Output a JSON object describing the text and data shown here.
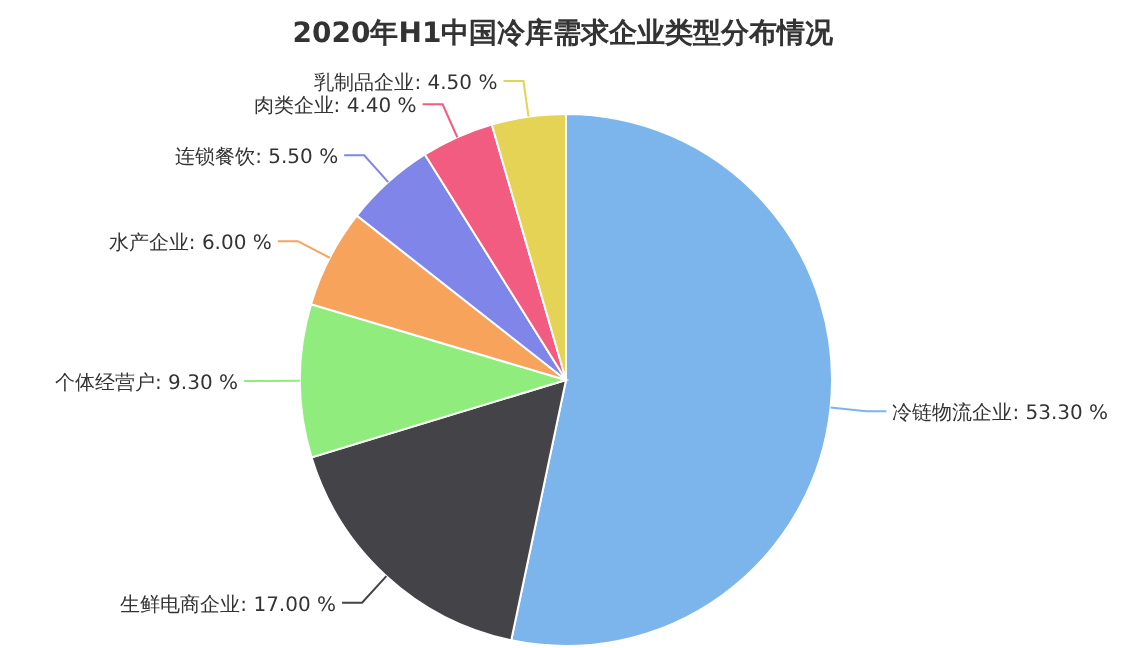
{
  "chart_data": {
    "type": "pie",
    "title": "2020年H1中国冷库需求企业类型分布情况",
    "categories": [
      "冷链物流企业",
      "生鲜电商企业",
      "个体经营户",
      "水产企业",
      "连锁餐饮",
      "肉类企业",
      "乳制品企业"
    ],
    "values": [
      53.3,
      17.0,
      9.3,
      6.0,
      5.5,
      4.4,
      4.5
    ],
    "value_labels": [
      "53.30 %",
      "17.00 %",
      "9.30 %",
      "6.00 %",
      "5.50 %",
      "4.40 %",
      "4.50 %"
    ],
    "colors": [
      "#7cb5ec",
      "#434348",
      "#90ed7d",
      "#f7a35c",
      "#8085e9",
      "#f15c80",
      "#e4d354"
    ],
    "legend": false
  }
}
